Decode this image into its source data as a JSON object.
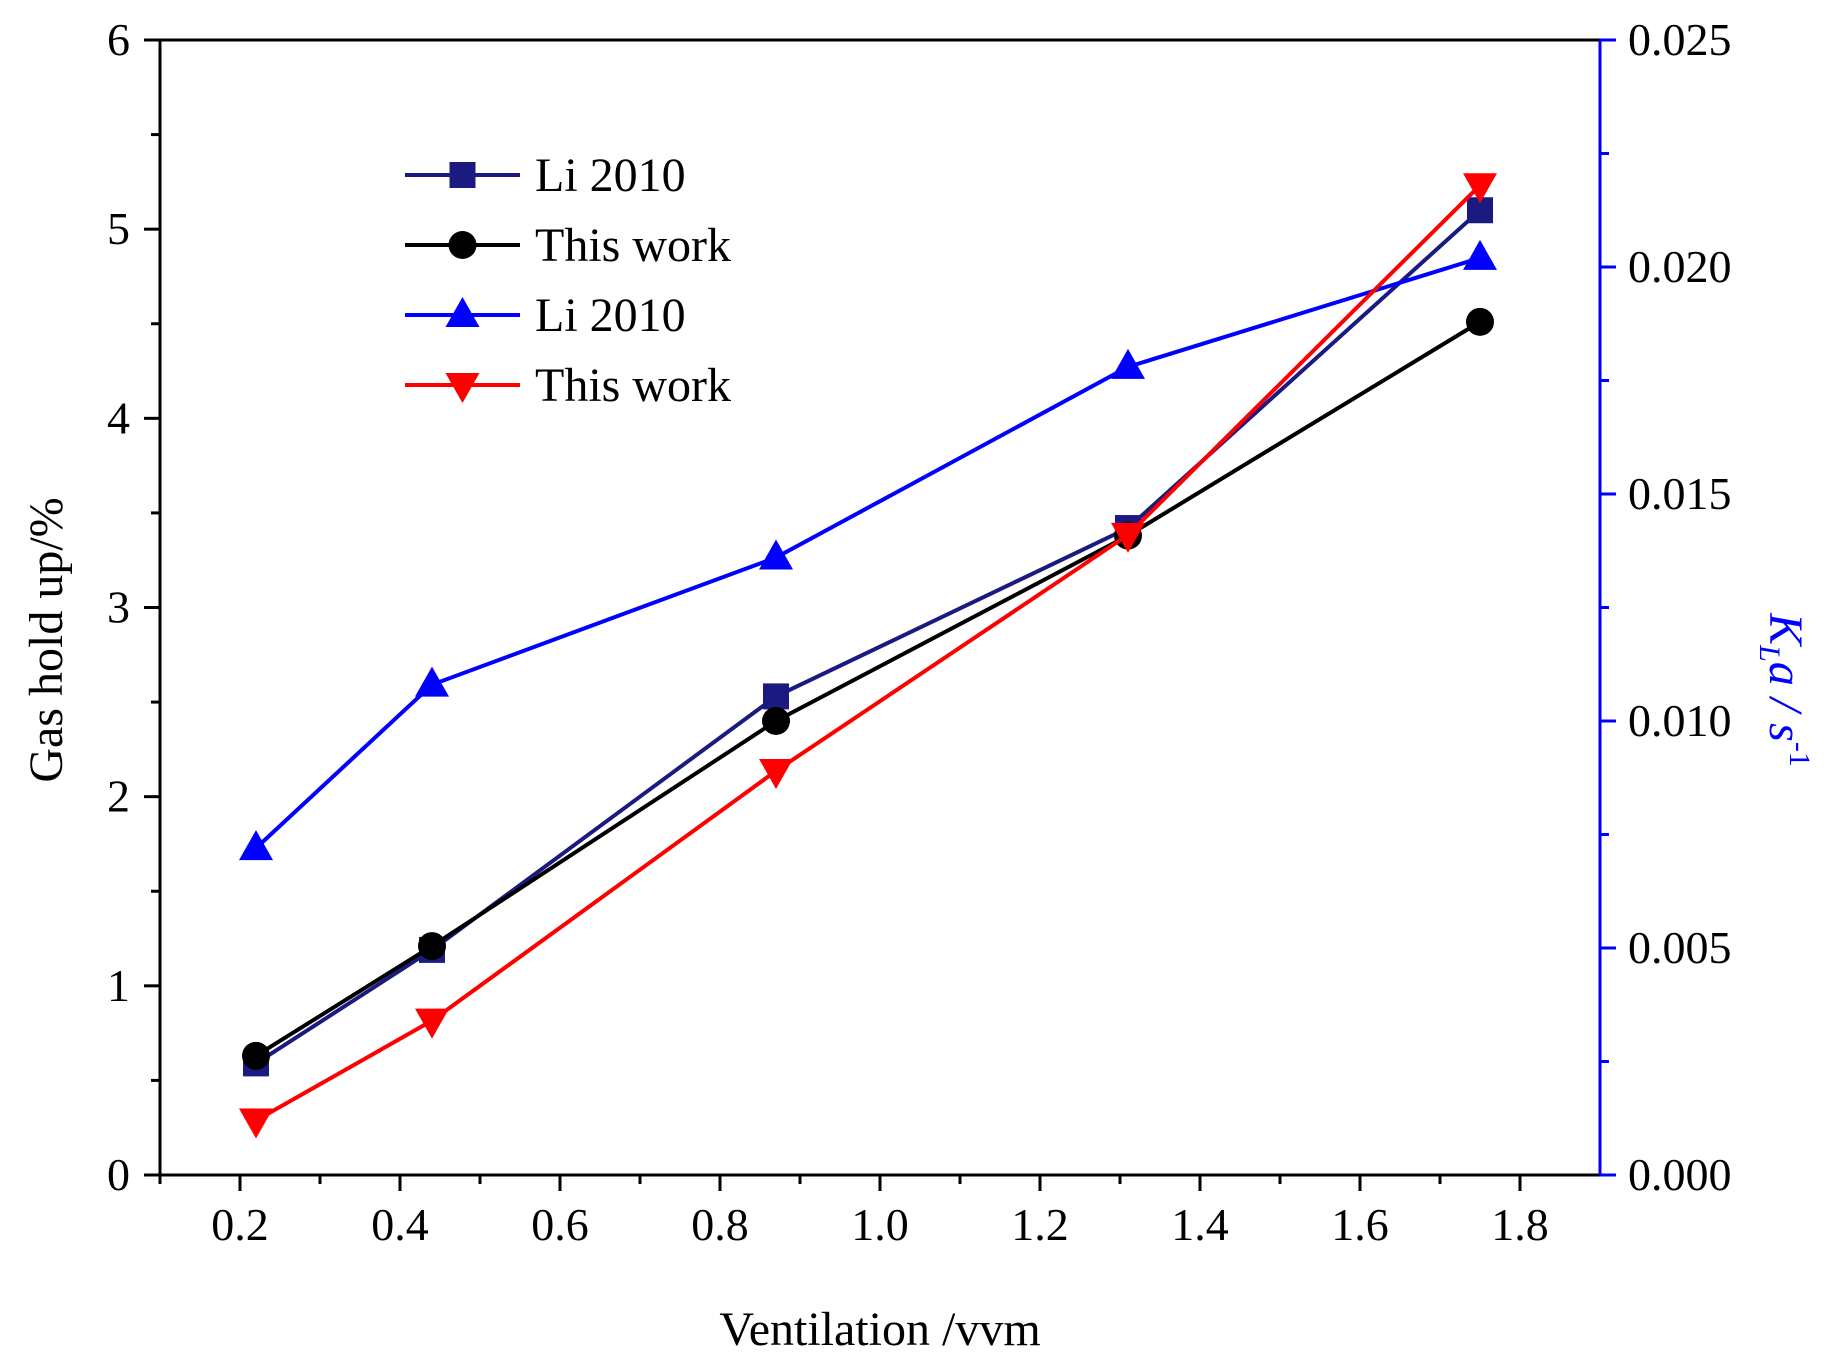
{
  "chart_data": {
    "type": "line",
    "title": "",
    "xlabel": "Ventilation /vvm",
    "ylabel": "Gas hold up/%",
    "y2label": {
      "main": "K",
      "sub": "L",
      "mid": "a / s",
      "sup": "-1"
    },
    "xlim": [
      0.1,
      1.9
    ],
    "ylim": [
      0,
      6
    ],
    "y2lim": [
      0,
      0.025
    ],
    "xticks": [
      "0.2",
      "0.4",
      "0.6",
      "0.8",
      "1.0",
      "1.2",
      "1.4",
      "1.6",
      "1.8"
    ],
    "yticks": [
      "0",
      "1",
      "2",
      "3",
      "4",
      "5",
      "6"
    ],
    "y2ticks": [
      "0.000",
      "0.005",
      "0.010",
      "0.015",
      "0.020",
      "0.025"
    ],
    "x": [
      0.22,
      0.44,
      0.87,
      1.31,
      1.75
    ],
    "series": [
      {
        "name": "Li 2010",
        "axis": "left",
        "marker": "square",
        "color": "#1a1a80",
        "values": [
          0.59,
          1.19,
          2.53,
          3.42,
          5.1
        ]
      },
      {
        "name": "This work",
        "axis": "left",
        "marker": "circle",
        "color": "#000000",
        "values": [
          0.63,
          1.21,
          2.4,
          3.38,
          4.51
        ]
      },
      {
        "name": "Li 2010",
        "axis": "right",
        "marker": "triangle-up",
        "color": "#0000ff",
        "values": [
          0.0072,
          0.0108,
          0.0136,
          0.0178,
          0.0202
        ]
      },
      {
        "name": "This work",
        "axis": "right",
        "marker": "triangle-down",
        "color": "#ff0000",
        "values": [
          0.0012,
          0.0034,
          0.0089,
          0.0141,
          0.0218
        ]
      }
    ],
    "legend_position": "top-left",
    "colors": {
      "right_axis": "#0000ff",
      "axes": "#000000"
    }
  }
}
